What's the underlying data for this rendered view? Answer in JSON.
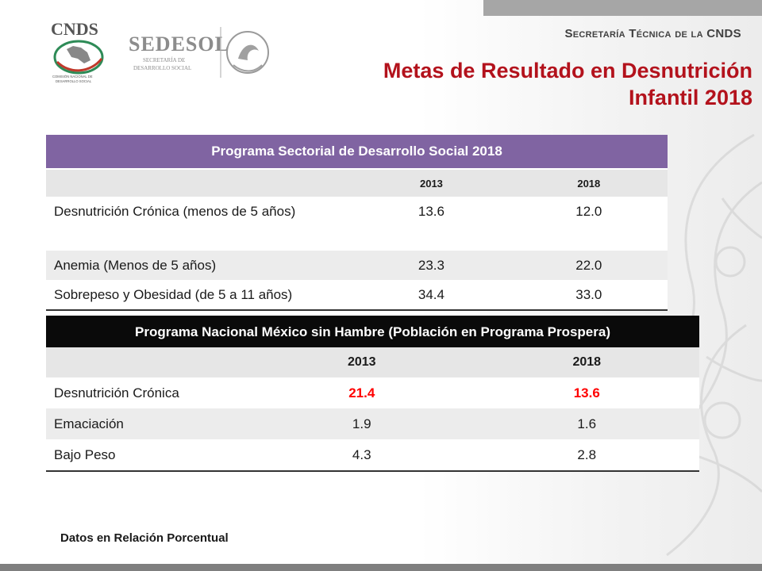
{
  "header": {
    "secretaria": "Secretaría Técnica de la CNDS",
    "title_line1": "Metas de Resultado en Desnutrición",
    "title_line2": "Infantil 2018",
    "logos": {
      "cnds": "CNDS",
      "cnds_sub1": "COMISIÓN NACIONAL DE",
      "cnds_sub2": "DESARROLLO SOCIAL",
      "sedesol": "SEDESOL",
      "sedesol_sub1": "SECRETARÍA DE",
      "sedesol_sub2": "DESARROLLO SOCIAL"
    }
  },
  "table1": {
    "title": "Programa Sectorial de Desarrollo Social 2018",
    "years": [
      "2013",
      "2018"
    ],
    "rows": [
      {
        "label": "Desnutrición Crónica (menos de 5 años)",
        "v2013": "13.6",
        "v2018": "12.0"
      },
      {
        "label": "Anemia (Menos de 5 años)",
        "v2013": "23.3",
        "v2018": "22.0"
      },
      {
        "label": "Sobrepeso y Obesidad (de 5 a 11 años)",
        "v2013": "34.4",
        "v2018": "33.0"
      }
    ]
  },
  "table2": {
    "title": "Programa Nacional México sin Hambre (Población en Programa Prospera)",
    "years": [
      "2013",
      "2018"
    ],
    "rows": [
      {
        "label": "Desnutrición Crónica",
        "v2013": "21.4",
        "v2018": "13.6"
      },
      {
        "label": "Emaciación",
        "v2013": "1.9",
        "v2018": "1.6"
      },
      {
        "label": "Bajo Peso",
        "v2013": "4.3",
        "v2018": "2.8"
      }
    ]
  },
  "footnote": "Datos en Relación Porcentual",
  "colors": {
    "title_red": "#b3121c",
    "table1_header": "#8064a2",
    "table2_header": "#0a0a0a",
    "highlight_red": "#ff0000"
  }
}
